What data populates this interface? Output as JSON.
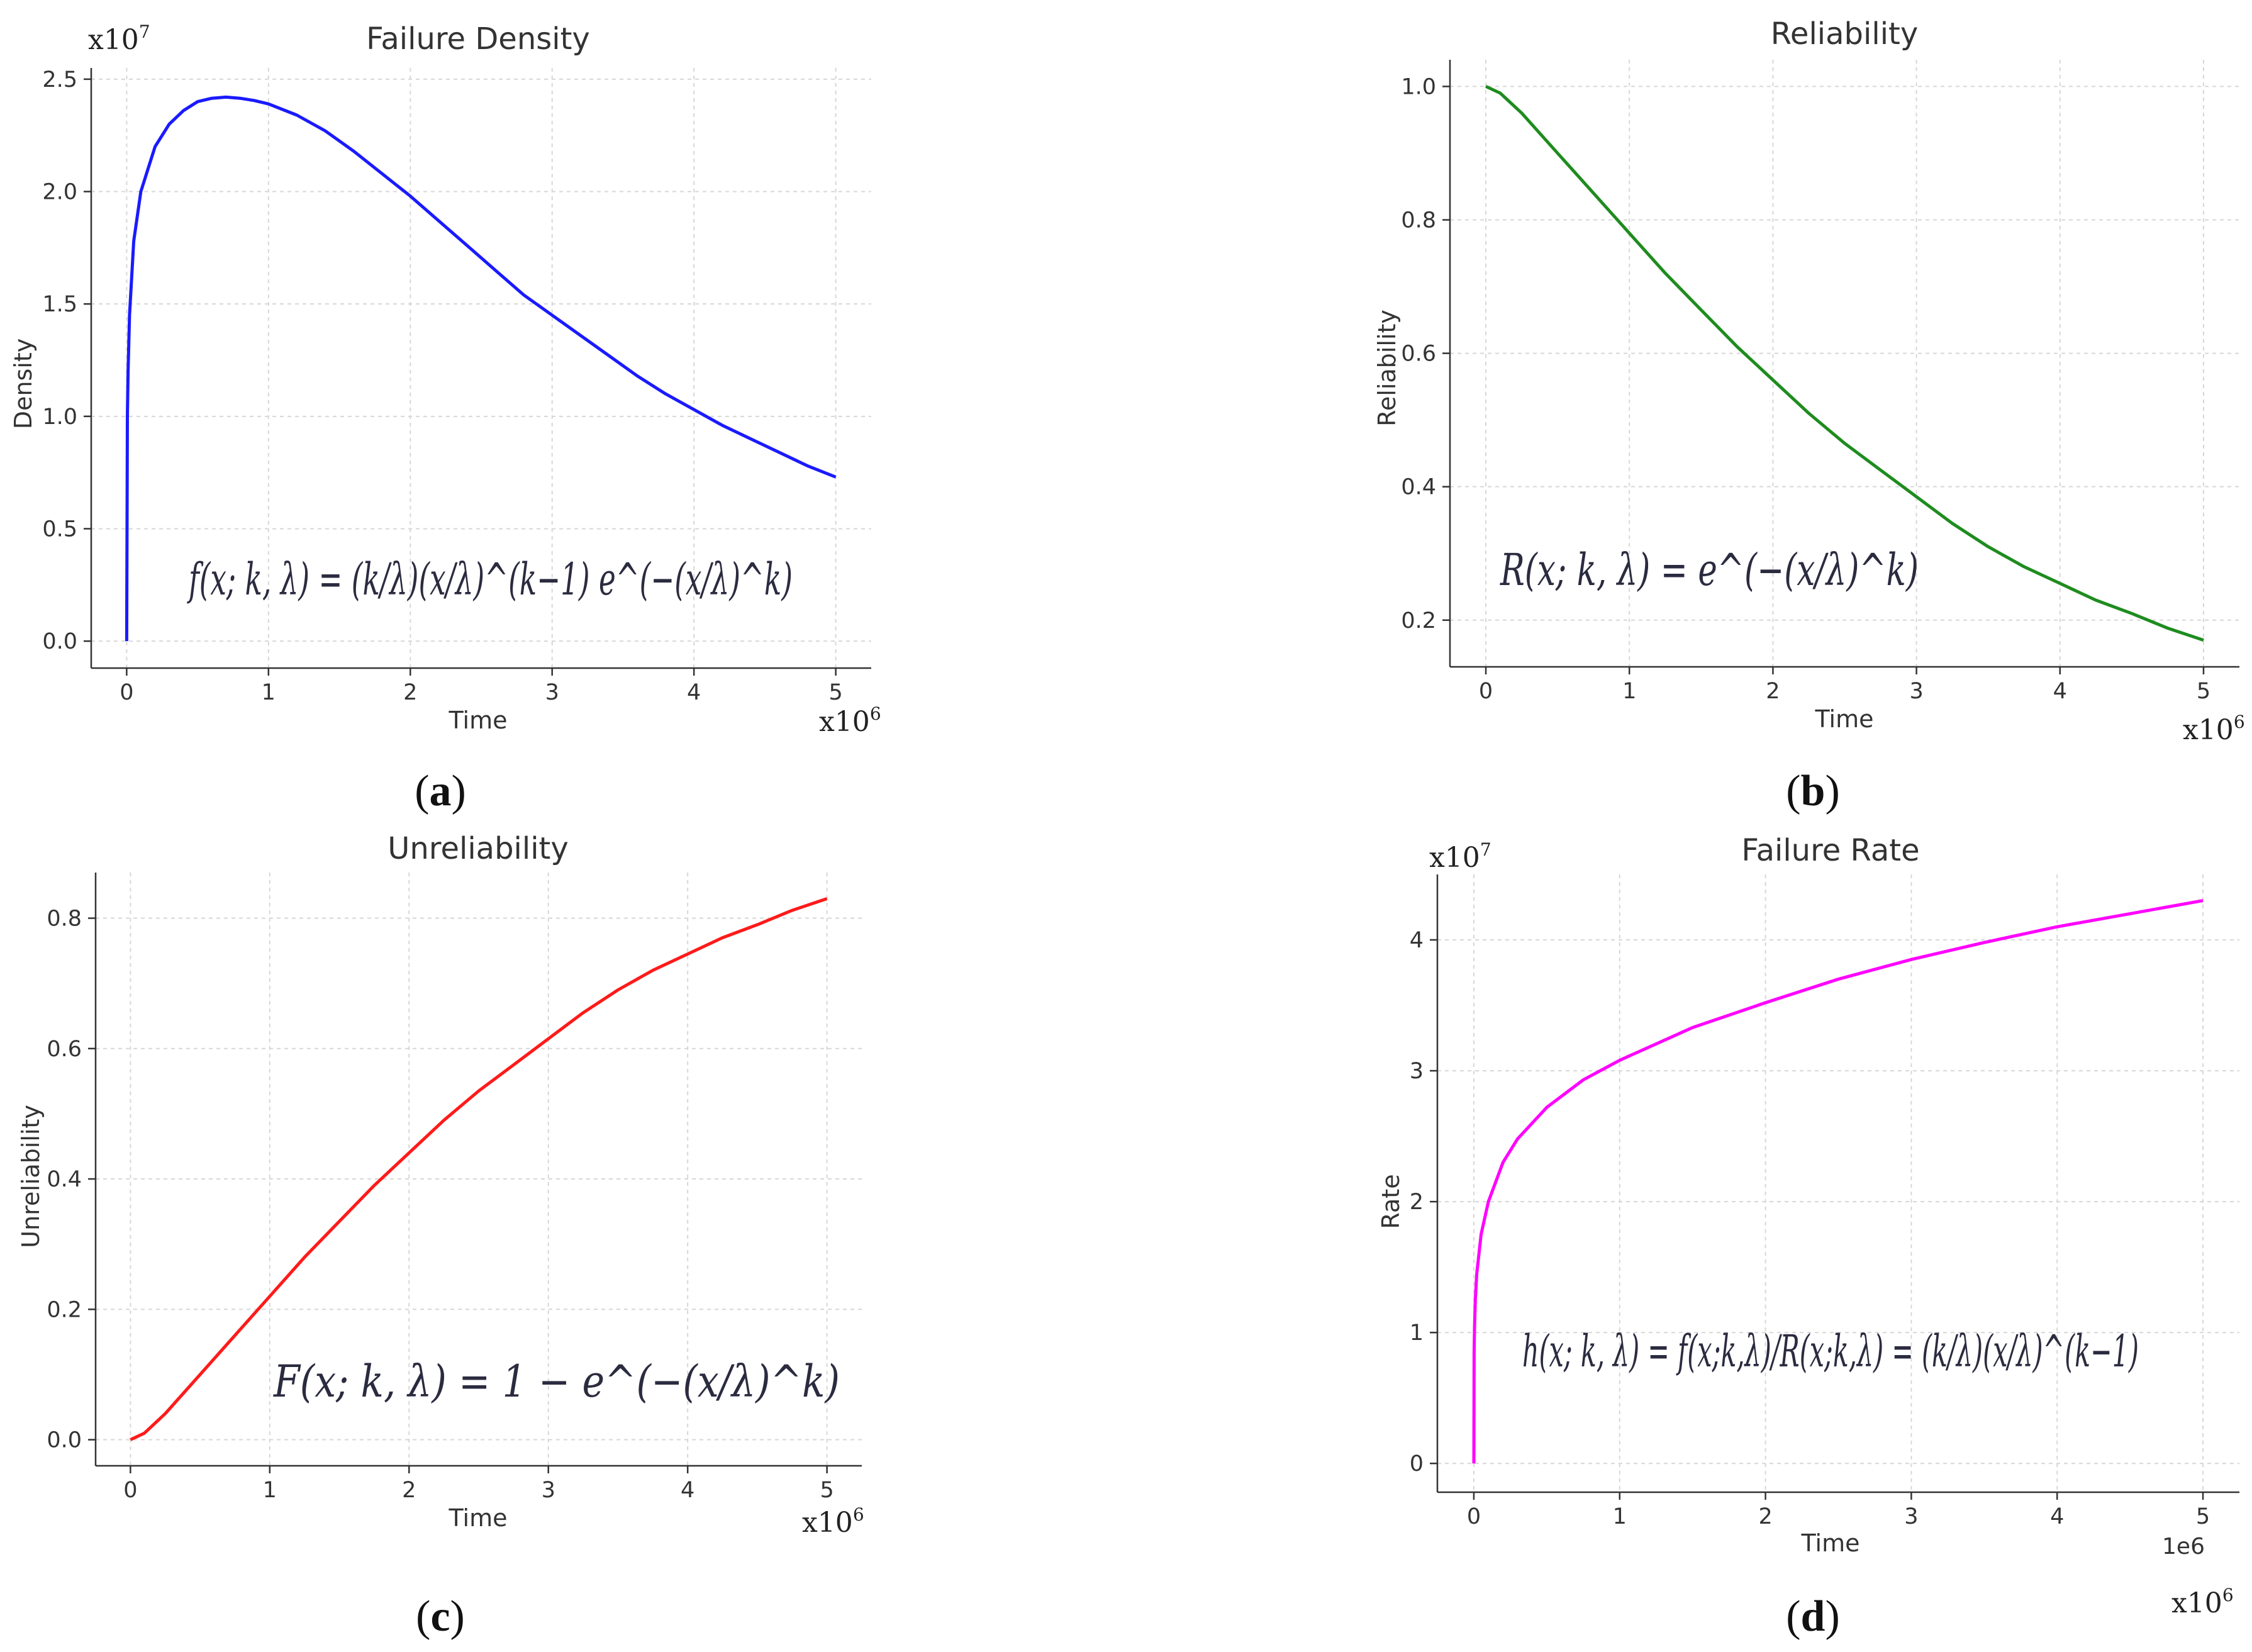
{
  "chart_data": [
    {
      "id": "a",
      "type": "line",
      "title": "Failure Density",
      "xlabel": "Time",
      "ylabel": "Density",
      "panel_label": "a",
      "color": "#1a1aff",
      "xlim": [
        -0.25,
        5.25
      ],
      "ylim": [
        -0.12,
        2.55
      ],
      "xticks": [
        0,
        1,
        2,
        3,
        4,
        5
      ],
      "yticks": [
        0.0,
        0.5,
        1.0,
        1.5,
        2.0,
        2.5
      ],
      "xtick_labels": [
        "0",
        "1",
        "2",
        "3",
        "4",
        "5"
      ],
      "ytick_labels": [
        "0.0",
        "0.5",
        "1.0",
        "1.5",
        "2.0",
        "2.5"
      ],
      "x_multiplier": "x10",
      "x_multiplier_exp": "6",
      "y_multiplier": "x10",
      "y_multiplier_exp": "7",
      "formula": "f(x; k, λ) = (k/λ)(x/λ)^(k−1) e^(−(x/λ)^k)",
      "series": [
        {
          "name": "Density",
          "x": [
            0,
            0.005,
            0.01,
            0.02,
            0.05,
            0.1,
            0.2,
            0.3,
            0.4,
            0.5,
            0.6,
            0.7,
            0.8,
            0.9,
            1.0,
            1.2,
            1.4,
            1.6,
            1.8,
            2.0,
            2.2,
            2.4,
            2.6,
            2.8,
            3.0,
            3.2,
            3.4,
            3.6,
            3.8,
            4.0,
            4.2,
            4.4,
            4.6,
            4.8,
            5.0
          ],
          "y": [
            0.0,
            1.0,
            1.2,
            1.45,
            1.78,
            2.0,
            2.2,
            2.3,
            2.36,
            2.4,
            2.415,
            2.42,
            2.415,
            2.405,
            2.39,
            2.34,
            2.27,
            2.18,
            2.08,
            1.98,
            1.87,
            1.76,
            1.65,
            1.54,
            1.45,
            1.36,
            1.27,
            1.18,
            1.1,
            1.03,
            0.96,
            0.9,
            0.84,
            0.78,
            0.73
          ]
        }
      ]
    },
    {
      "id": "b",
      "type": "line",
      "title": "Reliability",
      "xlabel": "Time",
      "ylabel": "Reliability",
      "panel_label": "b",
      "color": "#1e8c1e",
      "xlim": [
        -0.25,
        5.25
      ],
      "ylim": [
        0.13,
        1.04
      ],
      "xticks": [
        0,
        1,
        2,
        3,
        4,
        5
      ],
      "yticks": [
        0.2,
        0.4,
        0.6,
        0.8,
        1.0
      ],
      "xtick_labels": [
        "0",
        "1",
        "2",
        "3",
        "4",
        "5"
      ],
      "ytick_labels": [
        "0.2",
        "0.4",
        "0.6",
        "0.8",
        "1.0"
      ],
      "x_multiplier": "x10",
      "x_multiplier_exp": "6",
      "formula": "R(x; k, λ) = e^(−(x/λ)^k)",
      "series": [
        {
          "name": "Reliability",
          "x": [
            0,
            0.1,
            0.25,
            0.5,
            0.75,
            1.0,
            1.25,
            1.5,
            1.75,
            2.0,
            2.25,
            2.5,
            2.75,
            3.0,
            3.25,
            3.5,
            3.75,
            4.0,
            4.25,
            4.5,
            4.75,
            5.0
          ],
          "y": [
            1.0,
            0.99,
            0.96,
            0.9,
            0.84,
            0.78,
            0.72,
            0.665,
            0.61,
            0.56,
            0.51,
            0.465,
            0.425,
            0.385,
            0.345,
            0.31,
            0.28,
            0.255,
            0.23,
            0.21,
            0.188,
            0.17
          ]
        }
      ]
    },
    {
      "id": "c",
      "type": "line",
      "title": "Unreliability",
      "xlabel": "Time",
      "ylabel": "Unreliability",
      "panel_label": "c",
      "color": "#ff1a1a",
      "xlim": [
        -0.25,
        5.25
      ],
      "ylim": [
        -0.04,
        0.87
      ],
      "xticks": [
        0,
        1,
        2,
        3,
        4,
        5
      ],
      "yticks": [
        0.0,
        0.2,
        0.4,
        0.6,
        0.8
      ],
      "xtick_labels": [
        "0",
        "1",
        "2",
        "3",
        "4",
        "5"
      ],
      "ytick_labels": [
        "0.0",
        "0.2",
        "0.4",
        "0.6",
        "0.8"
      ],
      "x_multiplier": "x10",
      "x_multiplier_exp": "6",
      "formula": "F(x; k, λ) = 1 − e^(−(x/λ)^k)",
      "series": [
        {
          "name": "Unreliability",
          "x": [
            0,
            0.1,
            0.25,
            0.5,
            0.75,
            1.0,
            1.25,
            1.5,
            1.75,
            2.0,
            2.25,
            2.5,
            2.75,
            3.0,
            3.25,
            3.5,
            3.75,
            4.0,
            4.25,
            4.5,
            4.75,
            5.0
          ],
          "y": [
            0.0,
            0.01,
            0.04,
            0.1,
            0.16,
            0.22,
            0.28,
            0.335,
            0.39,
            0.44,
            0.49,
            0.535,
            0.575,
            0.615,
            0.655,
            0.69,
            0.72,
            0.745,
            0.77,
            0.79,
            0.812,
            0.83
          ]
        }
      ]
    },
    {
      "id": "d",
      "type": "line",
      "title": "Failure Rate",
      "xlabel": "Time",
      "ylabel": "Rate",
      "panel_label": "d",
      "color": "#ff00ff",
      "xlim": [
        -0.25,
        5.25
      ],
      "ylim": [
        -0.22,
        4.5
      ],
      "xticks": [
        0,
        1,
        2,
        3,
        4,
        5
      ],
      "yticks": [
        0,
        1,
        2,
        3,
        4
      ],
      "xtick_labels": [
        "0",
        "1",
        "2",
        "3",
        "4",
        "5"
      ],
      "ytick_labels": [
        "0",
        "1",
        "2",
        "3",
        "4"
      ],
      "x_offset_text": "1e6",
      "x_multiplier": "x10",
      "x_multiplier_exp": "6",
      "y_multiplier": "x10",
      "y_multiplier_exp": "7",
      "formula": "h(x; k, λ) = f(x;k,λ)/R(x;k,λ) = (k/λ)(x/λ)^(k−1)",
      "series": [
        {
          "name": "Rate",
          "x": [
            0,
            0.002,
            0.005,
            0.01,
            0.02,
            0.05,
            0.1,
            0.2,
            0.3,
            0.5,
            0.75,
            1.0,
            1.5,
            2.0,
            2.5,
            3.0,
            3.5,
            4.0,
            4.5,
            5.0
          ],
          "y": [
            0.0,
            0.85,
            1.05,
            1.25,
            1.45,
            1.75,
            2.0,
            2.3,
            2.48,
            2.72,
            2.93,
            3.08,
            3.33,
            3.52,
            3.7,
            3.85,
            3.98,
            4.1,
            4.2,
            4.3
          ]
        }
      ]
    }
  ]
}
